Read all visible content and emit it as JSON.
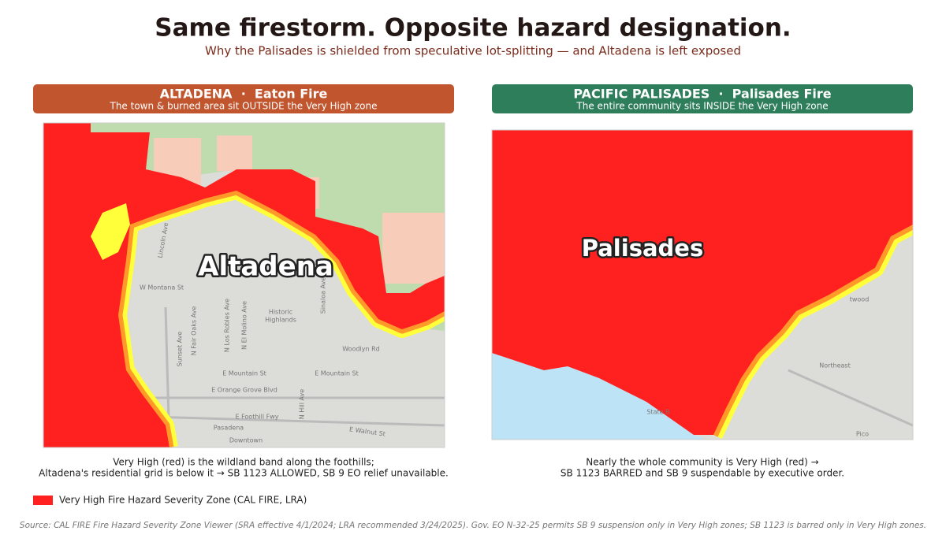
{
  "header": {
    "title": "Same firestorm. Opposite hazard designation.",
    "subtitle": "Why the Palisades is shielded from speculative lot-splitting — and Altadena is left exposed"
  },
  "panels": [
    {
      "heading": "ALTADENA  ·  Eaton Fire",
      "subheading": "The town & burned area sit OUTSIDE the Very High zone",
      "map_label": "Altadena",
      "street_labels": [
        "W Montana St",
        "Historic",
        "Highlands",
        "Woodlyn Rd",
        "E Mountain St",
        "E Mountain St",
        "E Orange Grove Blvd",
        "E Foothill Fwy",
        "Pasadena",
        "Downtown",
        "E Walnut St",
        "Lincoln Ave",
        "N Fair Oaks Ave",
        "N Los Robles Ave",
        "N El Molino Ave",
        "Sunset Ave",
        "N Hill Ave",
        "Sinaloa Ave"
      ],
      "caption": [
        "Very High (red) is the wildland band along the foothills;",
        "Altadena's residential grid is below it → SB 1123 ALLOWED, SB 9 EO relief unavailable."
      ]
    },
    {
      "heading": "PACIFIC PALISADES  ·  Palisades Fire",
      "subheading": "The entire community sits INSIDE the Very High zone",
      "map_label": "Palisades",
      "street_labels": [
        "twood",
        "Northeast",
        "Pico",
        "State B"
      ],
      "caption": [
        "Nearly the whole community is Very High (red) →",
        "SB 1123 BARRED and SB 9 suspendable by executive order."
      ]
    }
  ],
  "legend": {
    "label": "Very High Fire Hazard Severity Zone (CAL FIRE, LRA)",
    "color": "#ff2020"
  },
  "source": "Source: CAL FIRE Fire Hazard Severity Zone Viewer (SRA effective 4/1/2024; LRA recommended 3/24/2025). Gov. EO N-32-25 permits SB 9 suspension only in Very High zones; SB 1123 is barred only in Very High zones."
}
